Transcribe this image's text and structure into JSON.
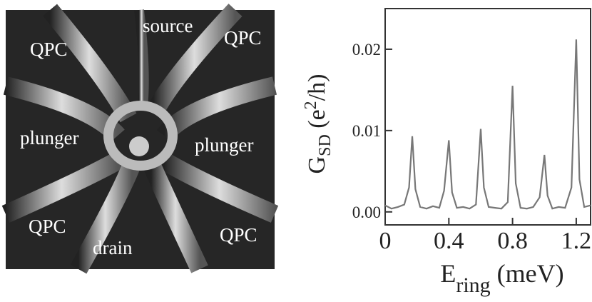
{
  "micrograph": {
    "labels": [
      "source",
      "QPC",
      "QPC",
      "plunger",
      "plunger",
      "QPC",
      "drain",
      "QPC"
    ]
  },
  "chart_data": {
    "type": "line",
    "ylabel": [
      "G",
      "SD",
      " (e",
      "2",
      "/h)"
    ],
    "xlabel": [
      "E",
      "ring",
      " (meV)"
    ],
    "x": [
      0,
      0.04,
      0.08,
      0.12,
      0.15,
      0.17,
      0.19,
      0.22,
      0.26,
      0.3,
      0.34,
      0.37,
      0.4,
      0.42,
      0.45,
      0.49,
      0.53,
      0.57,
      0.6,
      0.62,
      0.65,
      0.69,
      0.73,
      0.77,
      0.8,
      0.82,
      0.85,
      0.89,
      0.93,
      0.97,
      1.0,
      1.02,
      1.05,
      1.09,
      1.13,
      1.17,
      1.2,
      1.22,
      1.25,
      1.29
    ],
    "values": [
      0.0008,
      0.0004,
      0.0006,
      0.0009,
      0.003,
      0.0093,
      0.0028,
      0.0006,
      0.0004,
      0.0007,
      0.0005,
      0.0026,
      0.0088,
      0.0024,
      0.0005,
      0.0006,
      0.0004,
      0.0009,
      0.0102,
      0.003,
      0.0006,
      0.0005,
      0.0004,
      0.0012,
      0.0155,
      0.0035,
      0.0005,
      0.0004,
      0.0006,
      0.0018,
      0.007,
      0.002,
      0.0004,
      0.0006,
      0.0005,
      0.003,
      0.0212,
      0.004,
      0.0006,
      0.0008
    ],
    "color": "#777777",
    "xlim": [
      0,
      1.29
    ],
    "ylim": [
      -0.0016,
      0.025
    ],
    "xticks": [
      0,
      0.4,
      0.8,
      1.2
    ],
    "yticks": [
      {
        "value": 0,
        "label": "0.00"
      },
      0.01,
      0.02
    ],
    "grid": false
  }
}
